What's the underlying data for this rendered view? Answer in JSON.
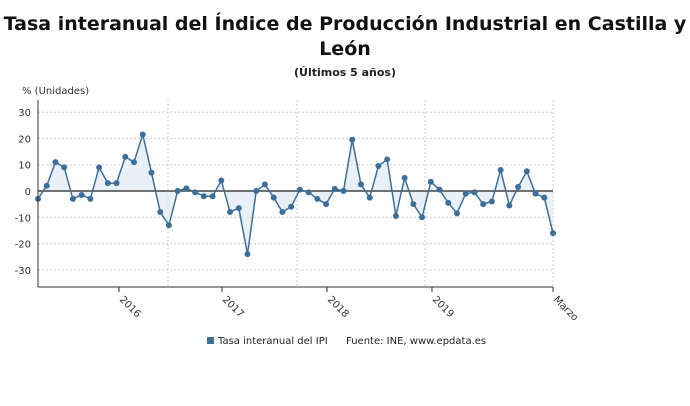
{
  "chart_data": {
    "type": "area",
    "title": "Tasa interanual del Índice de Producción Industrial en Castilla y León",
    "subtitle": "(Últimos 5 años)",
    "ylabel": "% (Unidades)",
    "ylim": [
      -35,
      35
    ],
    "yticks": [
      30,
      20,
      10,
      0,
      -10,
      -20,
      -30
    ],
    "xticks": [
      "2016",
      "2017",
      "2018",
      "2019",
      "Marzo"
    ],
    "grid": true,
    "legend_position": "bottom",
    "series": [
      {
        "name": "Tasa interanual del IPI",
        "color": "#3d6f99",
        "values": [
          -3,
          2,
          11,
          9,
          -3,
          -1.5,
          -3,
          9,
          3,
          3,
          13,
          11,
          21.5,
          7,
          -8,
          -13,
          0,
          1,
          -0.5,
          -2,
          -2,
          4,
          -8,
          -6.5,
          -24,
          0,
          2.5,
          -2.5,
          -8,
          -6,
          0.5,
          -0.5,
          -3,
          -5,
          0.8,
          0,
          19.5,
          2.5,
          -2.5,
          9.5,
          12,
          -9.5,
          5,
          -5,
          -10,
          3.5,
          0.5,
          -4.5,
          -8.5,
          -1,
          -0.5,
          -5,
          -4,
          8,
          -5.5,
          1.5,
          7.5,
          -1,
          -2.5,
          -16
        ]
      }
    ],
    "source": "Fuente: INE, www.epdata.es"
  }
}
